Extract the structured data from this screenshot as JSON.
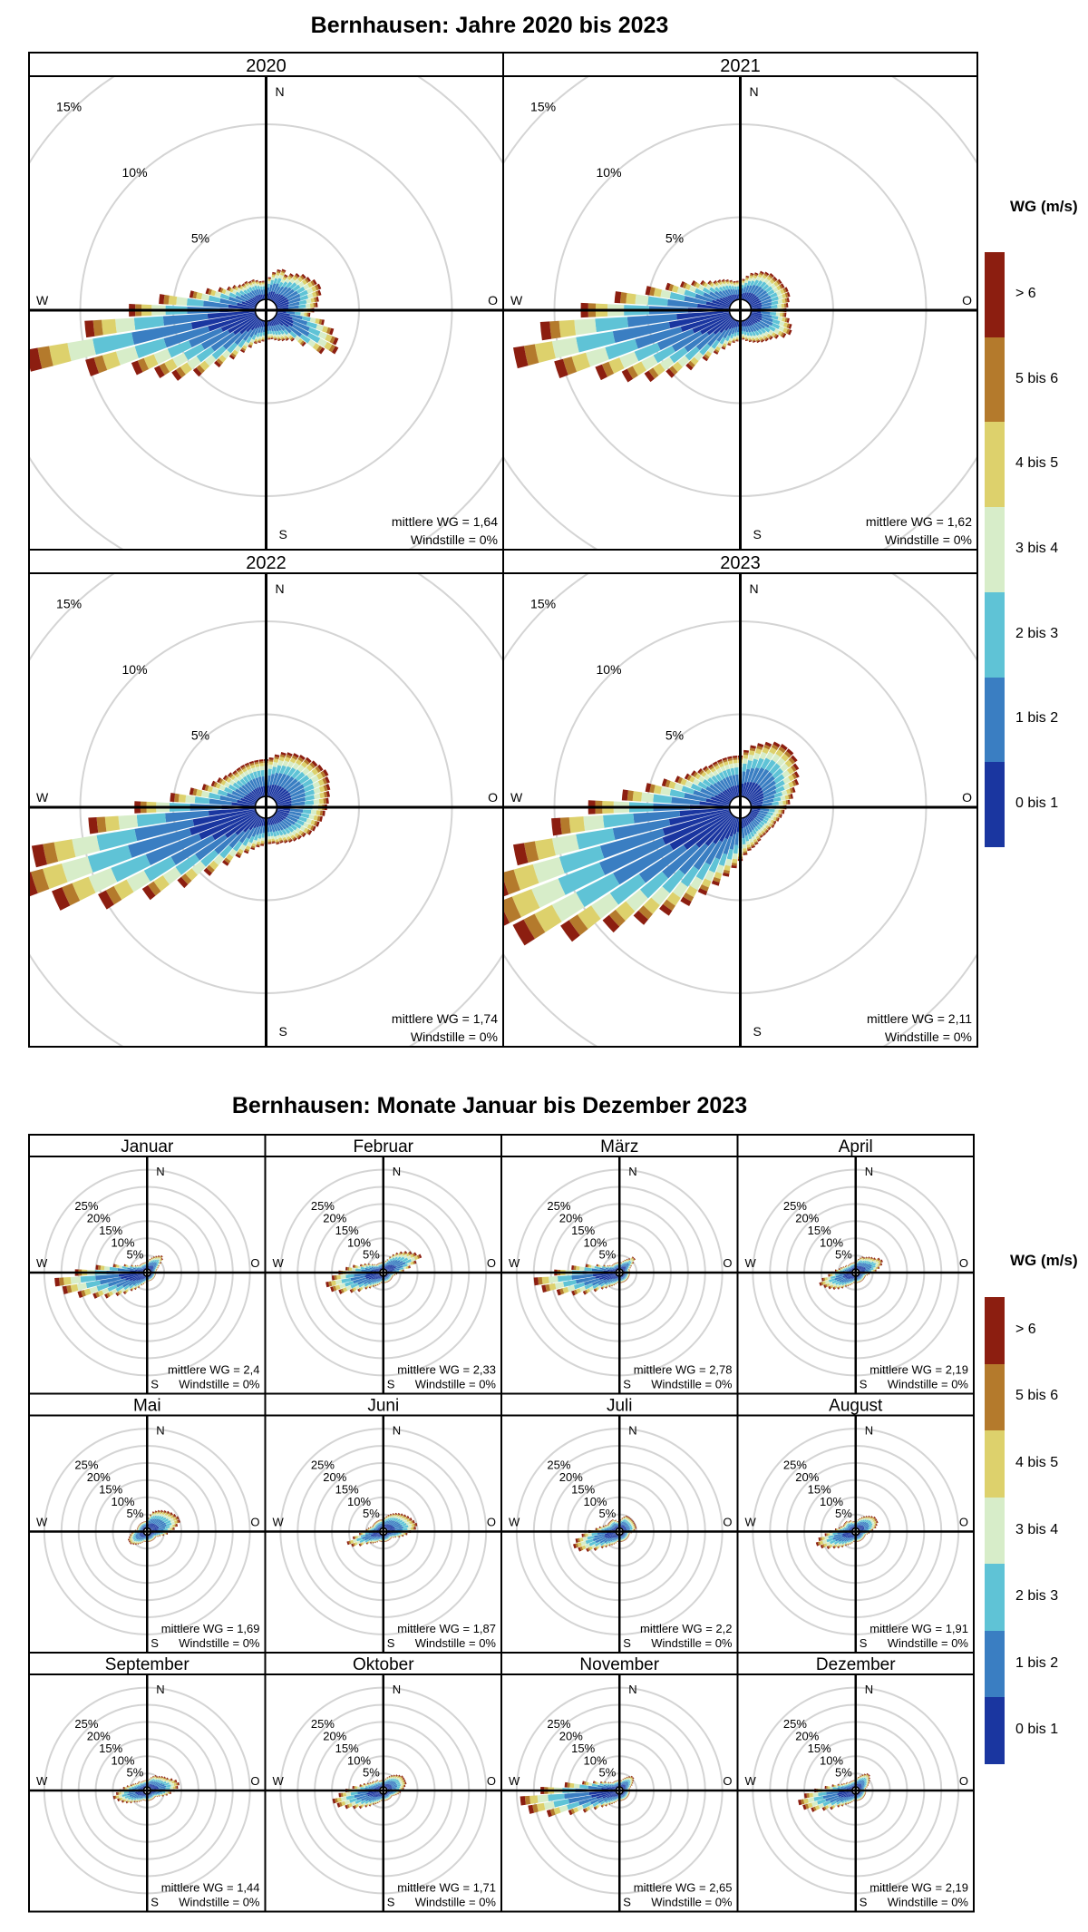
{
  "titles": {
    "years": "Bernhausen: Jahre 2020 bis 2023",
    "months": "Bernhausen: Monate Januar bis Dezember 2023"
  },
  "compass": {
    "north": "N",
    "east": "O",
    "south": "S",
    "west": "W"
  },
  "labels": {
    "mean_prefix": "mittlere WG = ",
    "calm_prefix": "Windstille = "
  },
  "legend": {
    "title": "WG (m/s)",
    "bins": [
      "0 bis 1",
      "1 bis 2",
      "2 bis 3",
      "3 bis 4",
      "4 bis 5",
      "5 bis 6",
      "> 6"
    ],
    "colors": [
      "#1a36a0",
      "#3a7ec2",
      "#5fc3d6",
      "#d7edc9",
      "#ddd16c",
      "#b47a2c",
      "#8c1e10"
    ]
  },
  "chart_data": [
    {
      "type": "windrose",
      "group": "years",
      "unit": "% of time",
      "radial_ticks": [
        5,
        10,
        15
      ],
      "panels": [
        {
          "title": "2020",
          "mean_ws": "1,64",
          "calm": "0%",
          "totals": [
            1.0,
            1.2,
            1.5,
            1.7,
            1.8,
            1.6,
            1.8,
            2.0,
            2.2,
            2.3,
            2.5,
            2.6,
            2.5,
            2.3,
            2.2,
            2.0,
            1.8,
            2.6,
            3.2,
            3.6,
            3.8,
            3.2,
            2.2,
            1.6,
            1.4,
            1.3,
            1.2,
            1.1,
            1.0,
            1.0,
            1.0,
            1.1,
            1.2,
            1.3,
            1.6,
            2.0,
            2.6,
            3.4,
            4.5,
            5.5,
            6.2,
            7.2,
            9.5,
            12.5,
            9.2,
            6.8,
            5.2,
            3.6,
            2.8,
            2.2,
            1.8,
            1.6,
            1.4,
            1.3,
            1.3,
            1.2,
            1.2,
            1.1,
            1.0,
            1.0
          ]
        },
        {
          "title": "2021",
          "mean_ws": "1,62",
          "calm": "0%",
          "totals": [
            1.0,
            1.1,
            1.3,
            1.5,
            1.6,
            1.8,
            1.9,
            2.0,
            2.0,
            2.1,
            2.1,
            2.2,
            2.2,
            2.1,
            2.0,
            1.9,
            1.9,
            2.1,
            2.3,
            2.4,
            2.2,
            1.9,
            1.7,
            1.6,
            1.5,
            1.4,
            1.3,
            1.2,
            1.1,
            1.0,
            1.0,
            1.1,
            1.2,
            1.4,
            1.7,
            2.1,
            2.7,
            3.6,
            4.6,
            5.6,
            6.6,
            7.8,
            9.8,
            11.8,
            10.2,
            8.0,
            6.2,
            4.6,
            3.6,
            2.9,
            2.4,
            2.0,
            1.7,
            1.5,
            1.4,
            1.3,
            1.2,
            1.1,
            1.0,
            1.0
          ]
        },
        {
          "title": "2022",
          "mean_ws": "1,74",
          "calm": "0%",
          "totals": [
            2.0,
            2.1,
            2.3,
            2.5,
            2.6,
            2.7,
            2.8,
            2.9,
            3.0,
            3.1,
            3.2,
            3.1,
            3.0,
            2.9,
            2.8,
            2.7,
            2.6,
            2.5,
            2.4,
            2.3,
            2.2,
            2.0,
            1.9,
            1.8,
            1.7,
            1.6,
            1.5,
            1.5,
            1.4,
            1.4,
            1.4,
            1.5,
            1.6,
            1.8,
            2.1,
            2.5,
            3.2,
            4.2,
            5.6,
            7.4,
            9.6,
            11.8,
            13.2,
            12.2,
            9.0,
            6.5,
            4.6,
            3.6,
            3.0,
            2.6,
            2.4,
            2.2,
            2.1,
            2.0,
            2.0,
            2.0,
            2.0,
            2.0,
            2.0,
            2.0
          ]
        },
        {
          "title": "2023",
          "mean_ws": "2,11",
          "calm": "0%",
          "totals": [
            2.2,
            2.5,
            2.8,
            3.0,
            3.2,
            3.4,
            3.5,
            3.5,
            3.4,
            3.2,
            3.0,
            2.8,
            2.5,
            2.3,
            2.1,
            1.9,
            1.8,
            1.7,
            1.6,
            1.5,
            1.5,
            1.4,
            1.4,
            1.4,
            1.4,
            1.5,
            1.6,
            1.7,
            1.8,
            2.0,
            2.3,
            2.7,
            3.2,
            3.8,
            4.5,
            5.4,
            6.4,
            7.6,
            9.0,
            11.0,
            13.2,
            14.0,
            13.4,
            11.8,
            9.6,
            7.6,
            5.8,
            4.6,
            3.8,
            3.2,
            2.8,
            2.6,
            2.4,
            2.3,
            2.2,
            2.2,
            2.2,
            2.2,
            2.2,
            2.2
          ]
        }
      ]
    },
    {
      "type": "windrose",
      "group": "months",
      "unit": "% of time",
      "radial_ticks": [
        5,
        10,
        15,
        20,
        25
      ],
      "panels": [
        {
          "title": "Januar",
          "mean_ws": "2,4",
          "calm": "0%",
          "totals": [
            2,
            2.5,
            3,
            3.5,
            4,
            4.5,
            5,
            5.5,
            5,
            4,
            3,
            2.5,
            2,
            1.8,
            1.5,
            1.5,
            1.5,
            1.5,
            1.5,
            1.5,
            1.5,
            1.5,
            1.5,
            1.5,
            1.5,
            1.5,
            1.5,
            1.5,
            1.5,
            1.5,
            1.5,
            1.5,
            2,
            2.5,
            3,
            4,
            5,
            6,
            8,
            10,
            13,
            16,
            20,
            24,
            26,
            20,
            14,
            9,
            6,
            4,
            3,
            2.5,
            2,
            2,
            2,
            2,
            2,
            2,
            2,
            2
          ]
        },
        {
          "title": "Februar",
          "mean_ws": "2,33",
          "calm": "0%",
          "totals": [
            2,
            2,
            2.5,
            3,
            4,
            5,
            6,
            7,
            8,
            9,
            10,
            11,
            9,
            7,
            5,
            4,
            3,
            2.5,
            2,
            2,
            2,
            2,
            2,
            2,
            2,
            2,
            2,
            2,
            2,
            2,
            2,
            2,
            2,
            2.5,
            3,
            3.5,
            4,
            5,
            6,
            8,
            10,
            13,
            15,
            16,
            14,
            12,
            10,
            8,
            6,
            5,
            4,
            3,
            2.5,
            2,
            2,
            2,
            2,
            2,
            2,
            2
          ]
        },
        {
          "title": "März",
          "mean_ws": "2,78",
          "calm": "0%",
          "totals": [
            2,
            2,
            2,
            2.5,
            3,
            3.5,
            4,
            5,
            5,
            4,
            3,
            2.5,
            2,
            2,
            2,
            2,
            2,
            2,
            2,
            2,
            2,
            2,
            2,
            2,
            2,
            2,
            2,
            2,
            2,
            2,
            2,
            2,
            2,
            2.5,
            3,
            3.5,
            4,
            5,
            6,
            8,
            11,
            14,
            18,
            22,
            24,
            18,
            13,
            9,
            6,
            4,
            3,
            2.5,
            2,
            2,
            2,
            2,
            2,
            2,
            2,
            2
          ]
        },
        {
          "title": "April",
          "mean_ws": "2,19",
          "calm": "0%",
          "totals": [
            2,
            2.5,
            3,
            3.5,
            4,
            4,
            4.5,
            5,
            5.5,
            6,
            7,
            7.5,
            7,
            6,
            5,
            4,
            3,
            2.5,
            2,
            2,
            2,
            2,
            2,
            2,
            2,
            2,
            2,
            2,
            2,
            2,
            2,
            2,
            2,
            2.5,
            3,
            3.5,
            4,
            5,
            6,
            7,
            8,
            9,
            10,
            9,
            7,
            6,
            5,
            4,
            3.5,
            3,
            2.5,
            2.5,
            2,
            2,
            2,
            2,
            2,
            2,
            2,
            2
          ]
        },
        {
          "title": "Mai",
          "mean_ws": "1,69",
          "calm": "0%",
          "totals": [
            2,
            3,
            4,
            5,
            5.5,
            6,
            6.5,
            7,
            7.5,
            8,
            8.5,
            9,
            9,
            8,
            7,
            6,
            5,
            4,
            3,
            2.5,
            2,
            2,
            2,
            2,
            2,
            2,
            2,
            2,
            2,
            2,
            2,
            2,
            2,
            2,
            2.5,
            3,
            3.5,
            4,
            4.5,
            5,
            5,
            5,
            4.5,
            4,
            3.5,
            3,
            2.5,
            2,
            2,
            2,
            2,
            2,
            2,
            2,
            2,
            2,
            2,
            2,
            2,
            2
          ]
        },
        {
          "title": "Juni",
          "mean_ws": "1,87",
          "calm": "0%",
          "totals": [
            2.5,
            3,
            3.5,
            4,
            4.5,
            5,
            5.5,
            6,
            6.5,
            7,
            7.5,
            8,
            8.5,
            9,
            8.5,
            7,
            6,
            5,
            4,
            3,
            2.5,
            2,
            2,
            2,
            2,
            2,
            2,
            2,
            2,
            2,
            2,
            2,
            2,
            2,
            2,
            2.5,
            3,
            3.5,
            4,
            5,
            7,
            9,
            10,
            8,
            6,
            5,
            4,
            3.5,
            3,
            2.5,
            2.5,
            2.5,
            2.5,
            2.5,
            2.5,
            2.5,
            2.5,
            2.5,
            2.5,
            2.5
          ]
        },
        {
          "title": "Juli",
          "mean_ws": "2,2",
          "calm": "0%",
          "totals": [
            2,
            2.5,
            3,
            3.5,
            4,
            4,
            4,
            4,
            4,
            4,
            4,
            4,
            4,
            4,
            3.5,
            3,
            2.5,
            2,
            2,
            2,
            2,
            2,
            2,
            2,
            2,
            2,
            2,
            2,
            2,
            2,
            2,
            2,
            2,
            2.5,
            3,
            3.5,
            4,
            5,
            6,
            8,
            10,
            12,
            13,
            12,
            10,
            8,
            6,
            5,
            4,
            3.5,
            3,
            3,
            3,
            3,
            3,
            3,
            2.5,
            2.5,
            2,
            2
          ]
        },
        {
          "title": "August",
          "mean_ws": "1,91",
          "calm": "0%",
          "totals": [
            2,
            2,
            2.5,
            3,
            3.5,
            4,
            4.5,
            5,
            5.5,
            6,
            6,
            6,
            5.5,
            5,
            4,
            3.5,
            3,
            2.5,
            2,
            2,
            2,
            2,
            2,
            2,
            2,
            2,
            2,
            2,
            2,
            2,
            2,
            2,
            2,
            2.5,
            3,
            3.5,
            4,
            5,
            6,
            7,
            8.5,
            10,
            11,
            10,
            8,
            6.5,
            5,
            4,
            3.5,
            3,
            3,
            3,
            3,
            3,
            2.5,
            2.5,
            2.5,
            2,
            2,
            2
          ]
        },
        {
          "title": "September",
          "mean_ws": "1,44",
          "calm": "0%",
          "totals": [
            2,
            2,
            2.5,
            3,
            3.5,
            4,
            4,
            4.5,
            5,
            5.5,
            6,
            7,
            8,
            8.5,
            8,
            7,
            6,
            5,
            4,
            3,
            2.5,
            2,
            2,
            2,
            2,
            2,
            2,
            2,
            2,
            2,
            2,
            2,
            2,
            2,
            2,
            2.5,
            3,
            3.5,
            4,
            5,
            6,
            7,
            8,
            9,
            8,
            7,
            6,
            5,
            4,
            3.5,
            3,
            2.5,
            2.5,
            2.5,
            2,
            2,
            2,
            2,
            2,
            2
          ]
        },
        {
          "title": "Oktober",
          "mean_ws": "1,71",
          "calm": "0%",
          "totals": [
            2,
            2,
            2.5,
            3,
            3.5,
            4,
            4.5,
            5,
            5.5,
            6,
            6,
            6,
            6,
            5.5,
            5,
            4.5,
            4,
            3.5,
            3,
            2.5,
            2,
            2,
            2,
            2,
            2,
            2,
            2,
            2,
            2,
            2,
            2,
            2,
            2,
            2.5,
            3,
            3.5,
            4,
            5,
            6,
            7.5,
            9,
            11,
            13,
            14,
            12,
            10,
            8,
            6,
            5,
            4,
            3.5,
            3,
            3,
            2.5,
            2.5,
            2.5,
            2,
            2,
            2,
            2
          ]
        },
        {
          "title": "November",
          "mean_ws": "2,65",
          "calm": "0%",
          "totals": [
            2,
            2,
            2,
            2.5,
            3,
            3.5,
            4,
            4.5,
            4.5,
            4,
            3.5,
            3,
            2.5,
            2,
            2,
            2,
            2,
            2,
            2,
            2,
            2,
            2,
            2,
            2,
            2,
            2,
            2,
            2,
            2,
            2,
            2,
            2,
            2,
            2.5,
            3,
            3.5,
            4,
            5,
            6,
            8,
            11,
            15,
            21,
            26,
            28,
            22,
            15,
            10,
            7,
            5,
            4,
            3,
            2.5,
            2,
            2,
            2,
            2,
            2,
            2,
            2
          ]
        },
        {
          "title": "Dezember",
          "mean_ws": "2,19",
          "calm": "0%",
          "totals": [
            2,
            2.5,
            3,
            3.5,
            4,
            4.5,
            5,
            5,
            4.5,
            4,
            3.5,
            3,
            2.5,
            2,
            2,
            2,
            2,
            2,
            2,
            2,
            2,
            2,
            2,
            2,
            2,
            2,
            2,
            2,
            2,
            2,
            2,
            2,
            2,
            2.5,
            3,
            3.5,
            4,
            5,
            6,
            8,
            10,
            13,
            15,
            16,
            14,
            11,
            8,
            6,
            4.5,
            3.5,
            3,
            2.5,
            2.5,
            2,
            2,
            2,
            2,
            2,
            2,
            2
          ]
        }
      ]
    }
  ]
}
